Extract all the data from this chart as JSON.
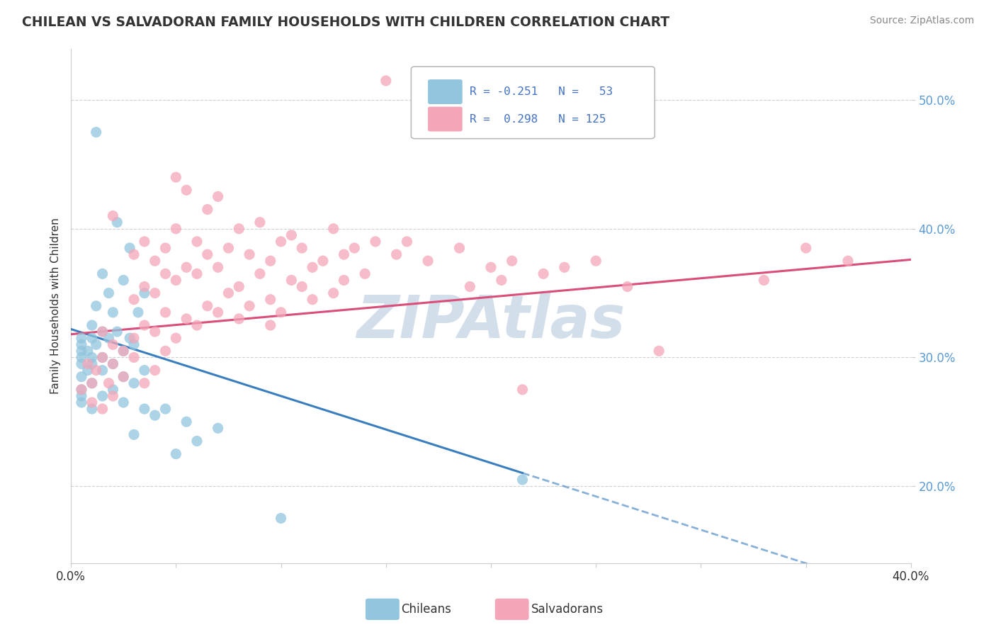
{
  "title": "CHILEAN VS SALVADORAN FAMILY HOUSEHOLDS WITH CHILDREN CORRELATION CHART",
  "source": "Source: ZipAtlas.com",
  "ylabel": "Family Households with Children",
  "xlim": [
    0.0,
    40.0
  ],
  "ylim": [
    14.0,
    54.0
  ],
  "blue_color": "#92c5de",
  "blue_line_color": "#3a7ebf",
  "pink_color": "#f4a6b8",
  "pink_line_color": "#d94f7a",
  "watermark": "ZIPAtlas",
  "watermark_color": "#ccd9e8",
  "blue_solid_end": 21.5,
  "blue_line_start_y": 32.2,
  "blue_line_slope": -0.52,
  "pink_line_start_y": 31.8,
  "pink_line_slope": 0.145,
  "blue_dots": [
    [
      1.2,
      47.5
    ],
    [
      2.2,
      40.5
    ],
    [
      2.8,
      38.5
    ],
    [
      1.5,
      36.5
    ],
    [
      2.5,
      36.0
    ],
    [
      1.8,
      35.0
    ],
    [
      3.5,
      35.0
    ],
    [
      1.2,
      34.0
    ],
    [
      2.0,
      33.5
    ],
    [
      3.2,
      33.5
    ],
    [
      1.0,
      32.5
    ],
    [
      1.5,
      32.0
    ],
    [
      2.2,
      32.0
    ],
    [
      0.5,
      31.5
    ],
    [
      1.0,
      31.5
    ],
    [
      1.8,
      31.5
    ],
    [
      2.8,
      31.5
    ],
    [
      0.5,
      31.0
    ],
    [
      1.2,
      31.0
    ],
    [
      3.0,
      31.0
    ],
    [
      0.5,
      30.5
    ],
    [
      0.8,
      30.5
    ],
    [
      2.5,
      30.5
    ],
    [
      0.5,
      30.0
    ],
    [
      1.0,
      30.0
    ],
    [
      1.5,
      30.0
    ],
    [
      0.5,
      29.5
    ],
    [
      1.0,
      29.5
    ],
    [
      2.0,
      29.5
    ],
    [
      0.8,
      29.0
    ],
    [
      1.5,
      29.0
    ],
    [
      3.5,
      29.0
    ],
    [
      0.5,
      28.5
    ],
    [
      2.5,
      28.5
    ],
    [
      1.0,
      28.0
    ],
    [
      3.0,
      28.0
    ],
    [
      0.5,
      27.5
    ],
    [
      2.0,
      27.5
    ],
    [
      0.5,
      27.0
    ],
    [
      1.5,
      27.0
    ],
    [
      0.5,
      26.5
    ],
    [
      2.5,
      26.5
    ],
    [
      4.5,
      26.0
    ],
    [
      1.0,
      26.0
    ],
    [
      3.5,
      26.0
    ],
    [
      4.0,
      25.5
    ],
    [
      5.5,
      25.0
    ],
    [
      7.0,
      24.5
    ],
    [
      3.0,
      24.0
    ],
    [
      6.0,
      23.5
    ],
    [
      5.0,
      22.5
    ],
    [
      21.5,
      20.5
    ],
    [
      10.0,
      17.5
    ]
  ],
  "pink_dots": [
    [
      15.0,
      51.5
    ],
    [
      5.0,
      44.0
    ],
    [
      5.5,
      43.0
    ],
    [
      7.0,
      42.5
    ],
    [
      6.5,
      41.5
    ],
    [
      2.0,
      41.0
    ],
    [
      9.0,
      40.5
    ],
    [
      5.0,
      40.0
    ],
    [
      8.0,
      40.0
    ],
    [
      12.5,
      40.0
    ],
    [
      10.5,
      39.5
    ],
    [
      3.5,
      39.0
    ],
    [
      6.0,
      39.0
    ],
    [
      10.0,
      39.0
    ],
    [
      14.5,
      39.0
    ],
    [
      16.0,
      39.0
    ],
    [
      4.5,
      38.5
    ],
    [
      7.5,
      38.5
    ],
    [
      11.0,
      38.5
    ],
    [
      13.5,
      38.5
    ],
    [
      18.5,
      38.5
    ],
    [
      3.0,
      38.0
    ],
    [
      6.5,
      38.0
    ],
    [
      8.5,
      38.0
    ],
    [
      13.0,
      38.0
    ],
    [
      15.5,
      38.0
    ],
    [
      4.0,
      37.5
    ],
    [
      9.5,
      37.5
    ],
    [
      12.0,
      37.5
    ],
    [
      17.0,
      37.5
    ],
    [
      21.0,
      37.5
    ],
    [
      25.0,
      37.5
    ],
    [
      5.5,
      37.0
    ],
    [
      7.0,
      37.0
    ],
    [
      11.5,
      37.0
    ],
    [
      20.0,
      37.0
    ],
    [
      23.5,
      37.0
    ],
    [
      4.5,
      36.5
    ],
    [
      6.0,
      36.5
    ],
    [
      9.0,
      36.5
    ],
    [
      14.0,
      36.5
    ],
    [
      22.5,
      36.5
    ],
    [
      5.0,
      36.0
    ],
    [
      10.5,
      36.0
    ],
    [
      13.0,
      36.0
    ],
    [
      20.5,
      36.0
    ],
    [
      3.5,
      35.5
    ],
    [
      8.0,
      35.5
    ],
    [
      11.0,
      35.5
    ],
    [
      19.0,
      35.5
    ],
    [
      26.5,
      35.5
    ],
    [
      4.0,
      35.0
    ],
    [
      7.5,
      35.0
    ],
    [
      12.5,
      35.0
    ],
    [
      3.0,
      34.5
    ],
    [
      9.5,
      34.5
    ],
    [
      11.5,
      34.5
    ],
    [
      6.5,
      34.0
    ],
    [
      8.5,
      34.0
    ],
    [
      4.5,
      33.5
    ],
    [
      7.0,
      33.5
    ],
    [
      10.0,
      33.5
    ],
    [
      5.5,
      33.0
    ],
    [
      8.0,
      33.0
    ],
    [
      3.5,
      32.5
    ],
    [
      6.0,
      32.5
    ],
    [
      9.5,
      32.5
    ],
    [
      1.5,
      32.0
    ],
    [
      4.0,
      32.0
    ],
    [
      3.0,
      31.5
    ],
    [
      5.0,
      31.5
    ],
    [
      2.0,
      31.0
    ],
    [
      2.5,
      30.5
    ],
    [
      4.5,
      30.5
    ],
    [
      1.5,
      30.0
    ],
    [
      3.0,
      30.0
    ],
    [
      0.8,
      29.5
    ],
    [
      2.0,
      29.5
    ],
    [
      4.0,
      29.0
    ],
    [
      1.2,
      29.0
    ],
    [
      2.5,
      28.5
    ],
    [
      1.0,
      28.0
    ],
    [
      1.8,
      28.0
    ],
    [
      3.5,
      28.0
    ],
    [
      0.5,
      27.5
    ],
    [
      2.0,
      27.0
    ],
    [
      1.0,
      26.5
    ],
    [
      1.5,
      26.0
    ],
    [
      21.5,
      27.5
    ],
    [
      28.0,
      30.5
    ],
    [
      33.0,
      36.0
    ],
    [
      37.0,
      37.5
    ],
    [
      35.0,
      38.5
    ]
  ]
}
